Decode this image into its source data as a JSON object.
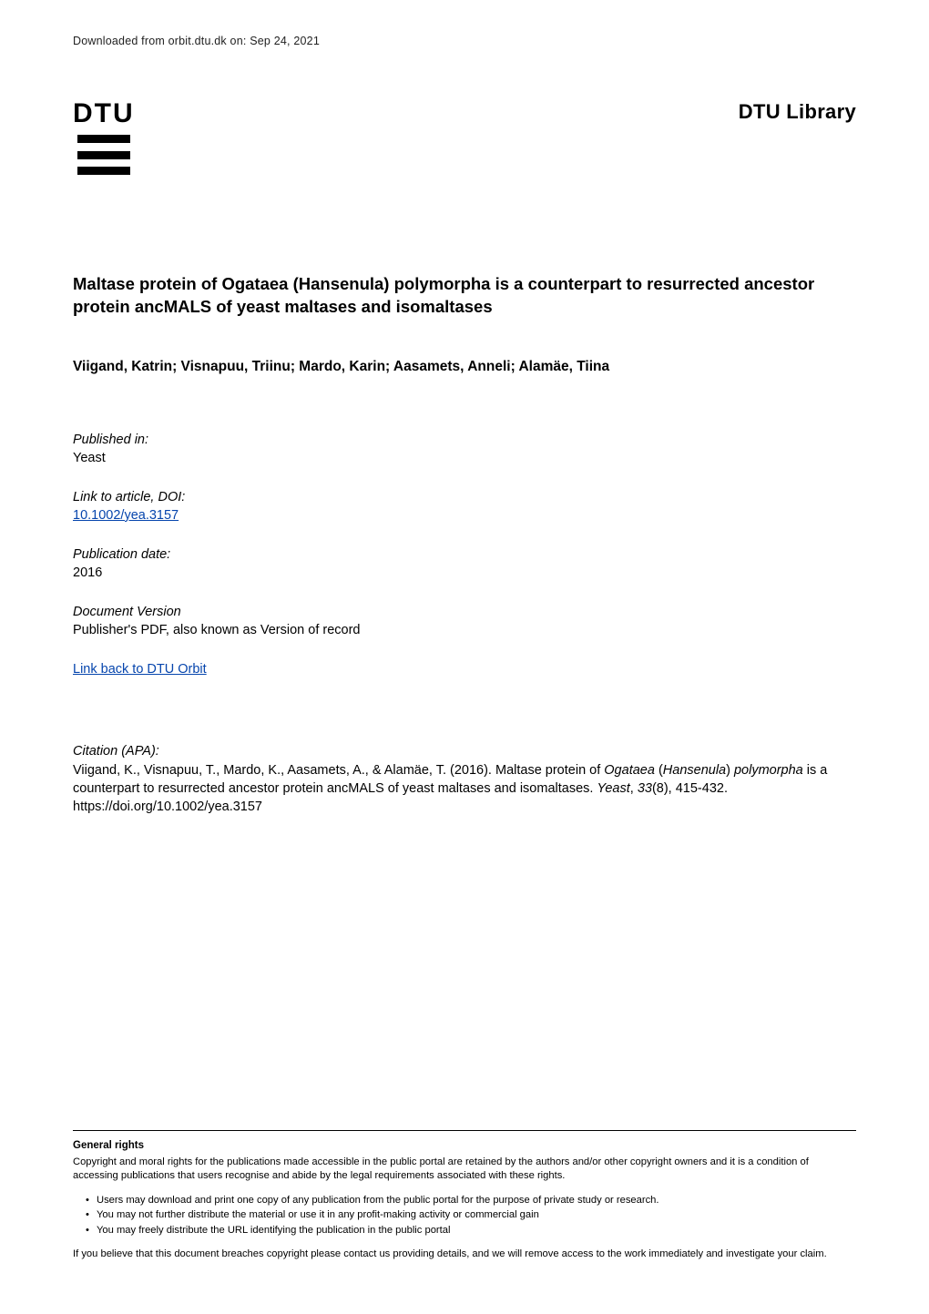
{
  "colors": {
    "text": "#000000",
    "bg": "#ffffff",
    "link": "#0645ad"
  },
  "fonts": {
    "body_family": "Arial, Helvetica, sans-serif",
    "body_size_pt": 11,
    "title_size_pt": 14,
    "footer_size_pt": 8.5
  },
  "header": {
    "download_line": "Downloaded from orbit.dtu.dk on: Sep 24, 2021",
    "logo_text": "DTU",
    "library_text": "DTU Library"
  },
  "title": "Maltase protein of Ogataea (Hansenula) polymorpha is a counterpart to resurrected ancestor protein ancMALS of yeast maltases and isomaltases",
  "authors": "Viigand, Katrin; Visnapuu, Triinu; Mardo, Karin; Aasamets, Anneli; Alamäe, Tiina",
  "meta": {
    "published_in_label": "Published in:",
    "published_in_value": "Yeast",
    "doi_label": "Link to article, DOI:",
    "doi_value": "10.1002/yea.3157",
    "pubdate_label": "Publication date:",
    "pubdate_value": "2016",
    "docver_label": "Document Version",
    "docver_value": "Publisher's PDF, also known as Version of record",
    "backlink": "Link back to DTU Orbit"
  },
  "citation": {
    "label": "Citation (APA):",
    "text_plain_1": "Viigand, K., Visnapuu, T., Mardo, K., Aasamets, A., & Alamäe, T. (2016). Maltase protein of ",
    "text_italic_1": "Ogataea",
    "text_plain_2": " (",
    "text_italic_2": "Hansenula",
    "text_plain_3": ") ",
    "text_italic_3": "polymorpha",
    "text_plain_4": " is a counterpart to resurrected ancestor protein ancMALS of yeast maltases and isomaltases. ",
    "text_italic_4": "Yeast",
    "text_plain_5": ", ",
    "text_italic_5": "33",
    "text_plain_6": "(8), 415-432. https://doi.org/10.1002/yea.3157"
  },
  "footer": {
    "heading": "General rights",
    "para1": "Copyright and moral rights for the publications made accessible in the public portal are retained by the authors and/or other copyright owners and it is a condition of accessing publications that users recognise and abide by the legal requirements associated with these rights.",
    "bullets": [
      "Users may download and print one copy of any publication from the public portal for the purpose of private study or research.",
      "You may not further distribute the material or use it in any profit-making activity or commercial gain",
      "You may freely distribute the URL identifying the publication in the public portal"
    ],
    "para2": "If you believe that this document breaches copyright please contact us providing details, and we will remove access to the work immediately and investigate your claim."
  }
}
